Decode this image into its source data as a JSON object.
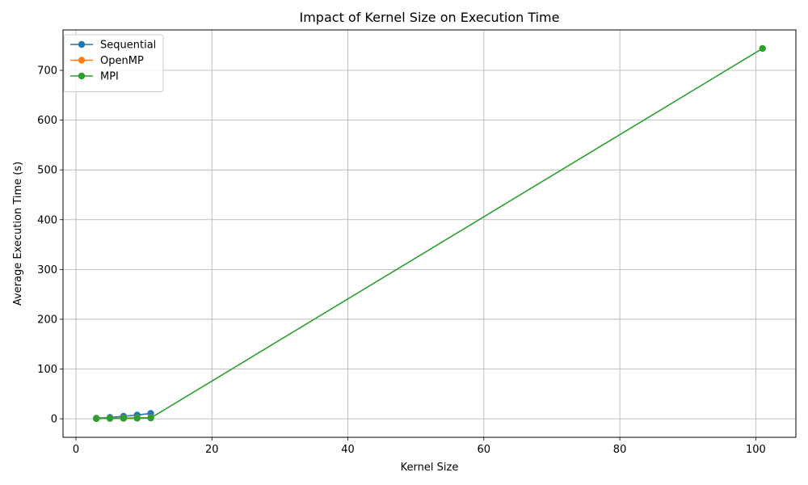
{
  "chart_data": {
    "type": "line",
    "title": "Impact of Kernel Size on Execution Time",
    "xlabel": "Kernel Size",
    "ylabel": "Average Execution Time (s)",
    "xlim": [
      -1.9,
      105.9
    ],
    "ylim": [
      -37.2,
      781.2
    ],
    "xticks": [
      0,
      20,
      40,
      60,
      80,
      100
    ],
    "yticks": [
      0,
      100,
      200,
      300,
      400,
      500,
      600,
      700
    ],
    "grid": true,
    "legend_position": "top-left",
    "series": [
      {
        "name": "Sequential",
        "color": "#1f77b4",
        "x": [
          3,
          5,
          7,
          9,
          11
        ],
        "y": [
          1.2,
          2.8,
          5.0,
          7.6,
          10.8
        ]
      },
      {
        "name": "OpenMP",
        "color": "#ff7f0e",
        "x": [
          3,
          5,
          7,
          9,
          11
        ],
        "y": [
          0.6,
          1.0,
          1.4,
          1.8,
          2.3
        ]
      },
      {
        "name": "MPI",
        "color": "#2ca02c",
        "x": [
          3,
          5,
          7,
          9,
          11,
          101
        ],
        "y": [
          0.4,
          0.7,
          0.9,
          1.2,
          1.6,
          744
        ]
      }
    ]
  }
}
